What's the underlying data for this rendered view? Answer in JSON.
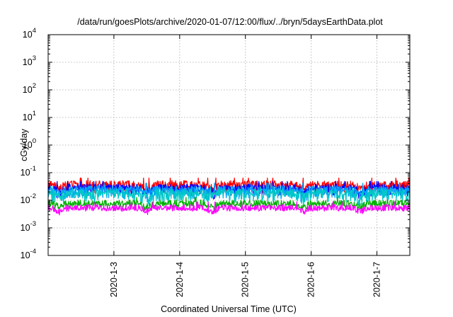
{
  "chart_data": {
    "type": "line",
    "title": "/data/run/goesPlots/archive/2020-01-07/12:00/flux/../bryn/5daysEarthData.plot",
    "xlabel": "Coordinated Universal Time (UTC)",
    "ylabel": "cGy/day",
    "yscale": "log",
    "ylim": [
      0.0001,
      10000
    ],
    "y_tick_exponents": [
      "-4",
      "-3",
      "-2",
      "-1",
      "0",
      "1",
      "2",
      "3",
      "4"
    ],
    "y_tick_base": "10",
    "xlim": [
      "2020-01-02T00:00",
      "2020-01-07T12:00"
    ],
    "x_ticks": [
      "2020-1-3",
      "2020-1-4",
      "2020-1-5",
      "2020-1-6",
      "2020-1-7"
    ],
    "x_tick_dates": [
      "2020-01-03T00:00",
      "2020-01-04T00:00",
      "2020-01-05T00:00",
      "2020-01-06T00:00",
      "2020-01-07T00:00"
    ],
    "grid": true,
    "dips": [
      "2020-01-02T04:00",
      "2020-01-03T12:00",
      "2020-01-04T12:00",
      "2020-01-05T21:00",
      "2020-01-06T18:00"
    ],
    "series": [
      {
        "color": "#ff0000",
        "base": 0.04,
        "low": 0.018
      },
      {
        "color": "#0000ff",
        "base": 0.03,
        "low": 0.014
      },
      {
        "color": "#00a0ff",
        "base": 0.026,
        "low": 0.011
      },
      {
        "color": "#00c8c8",
        "base": 0.02,
        "low": 0.008
      },
      {
        "color": "#00b000",
        "base": 0.008,
        "low": 0.0055
      },
      {
        "color": "#ff00ff",
        "base": 0.0055,
        "low": 0.004
      }
    ]
  }
}
